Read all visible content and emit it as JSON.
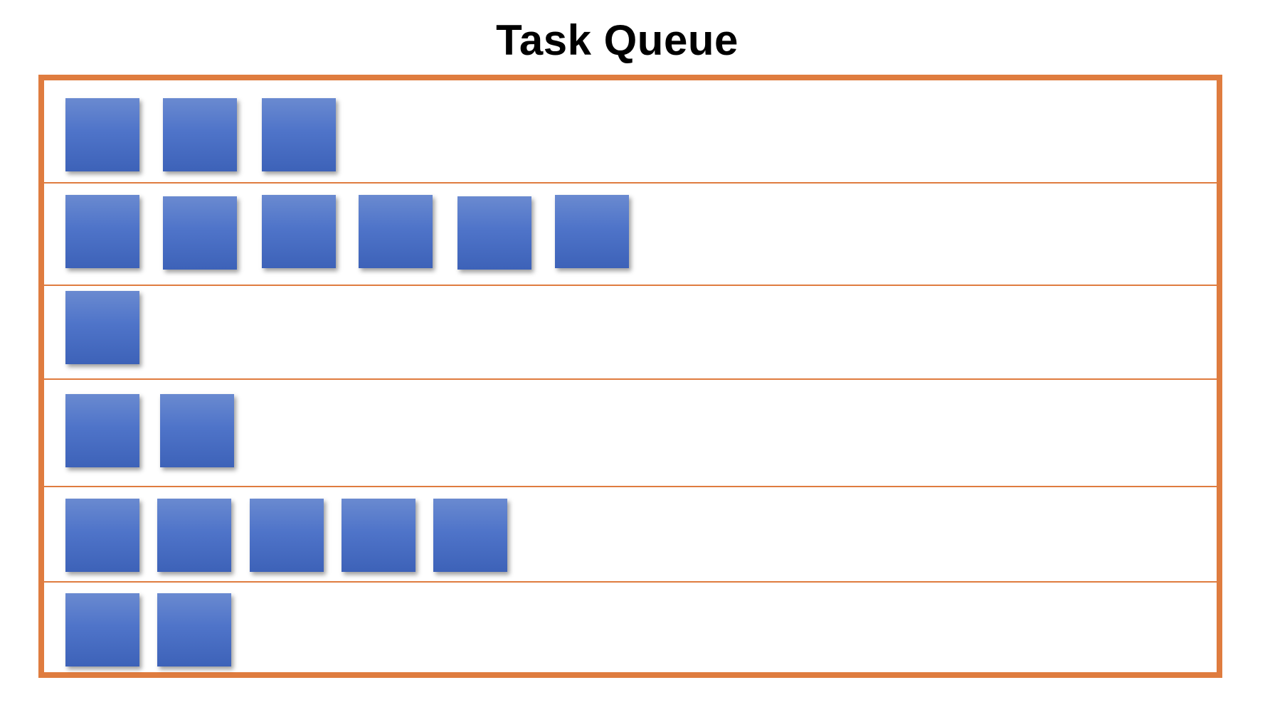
{
  "title": "Task Queue",
  "colors": {
    "frame": "#df7c3f",
    "task": "#4a6fc6"
  },
  "lanes": [
    {
      "task_count": 3
    },
    {
      "task_count": 6
    },
    {
      "task_count": 1
    },
    {
      "task_count": 2
    },
    {
      "task_count": 5
    },
    {
      "task_count": 2
    }
  ]
}
